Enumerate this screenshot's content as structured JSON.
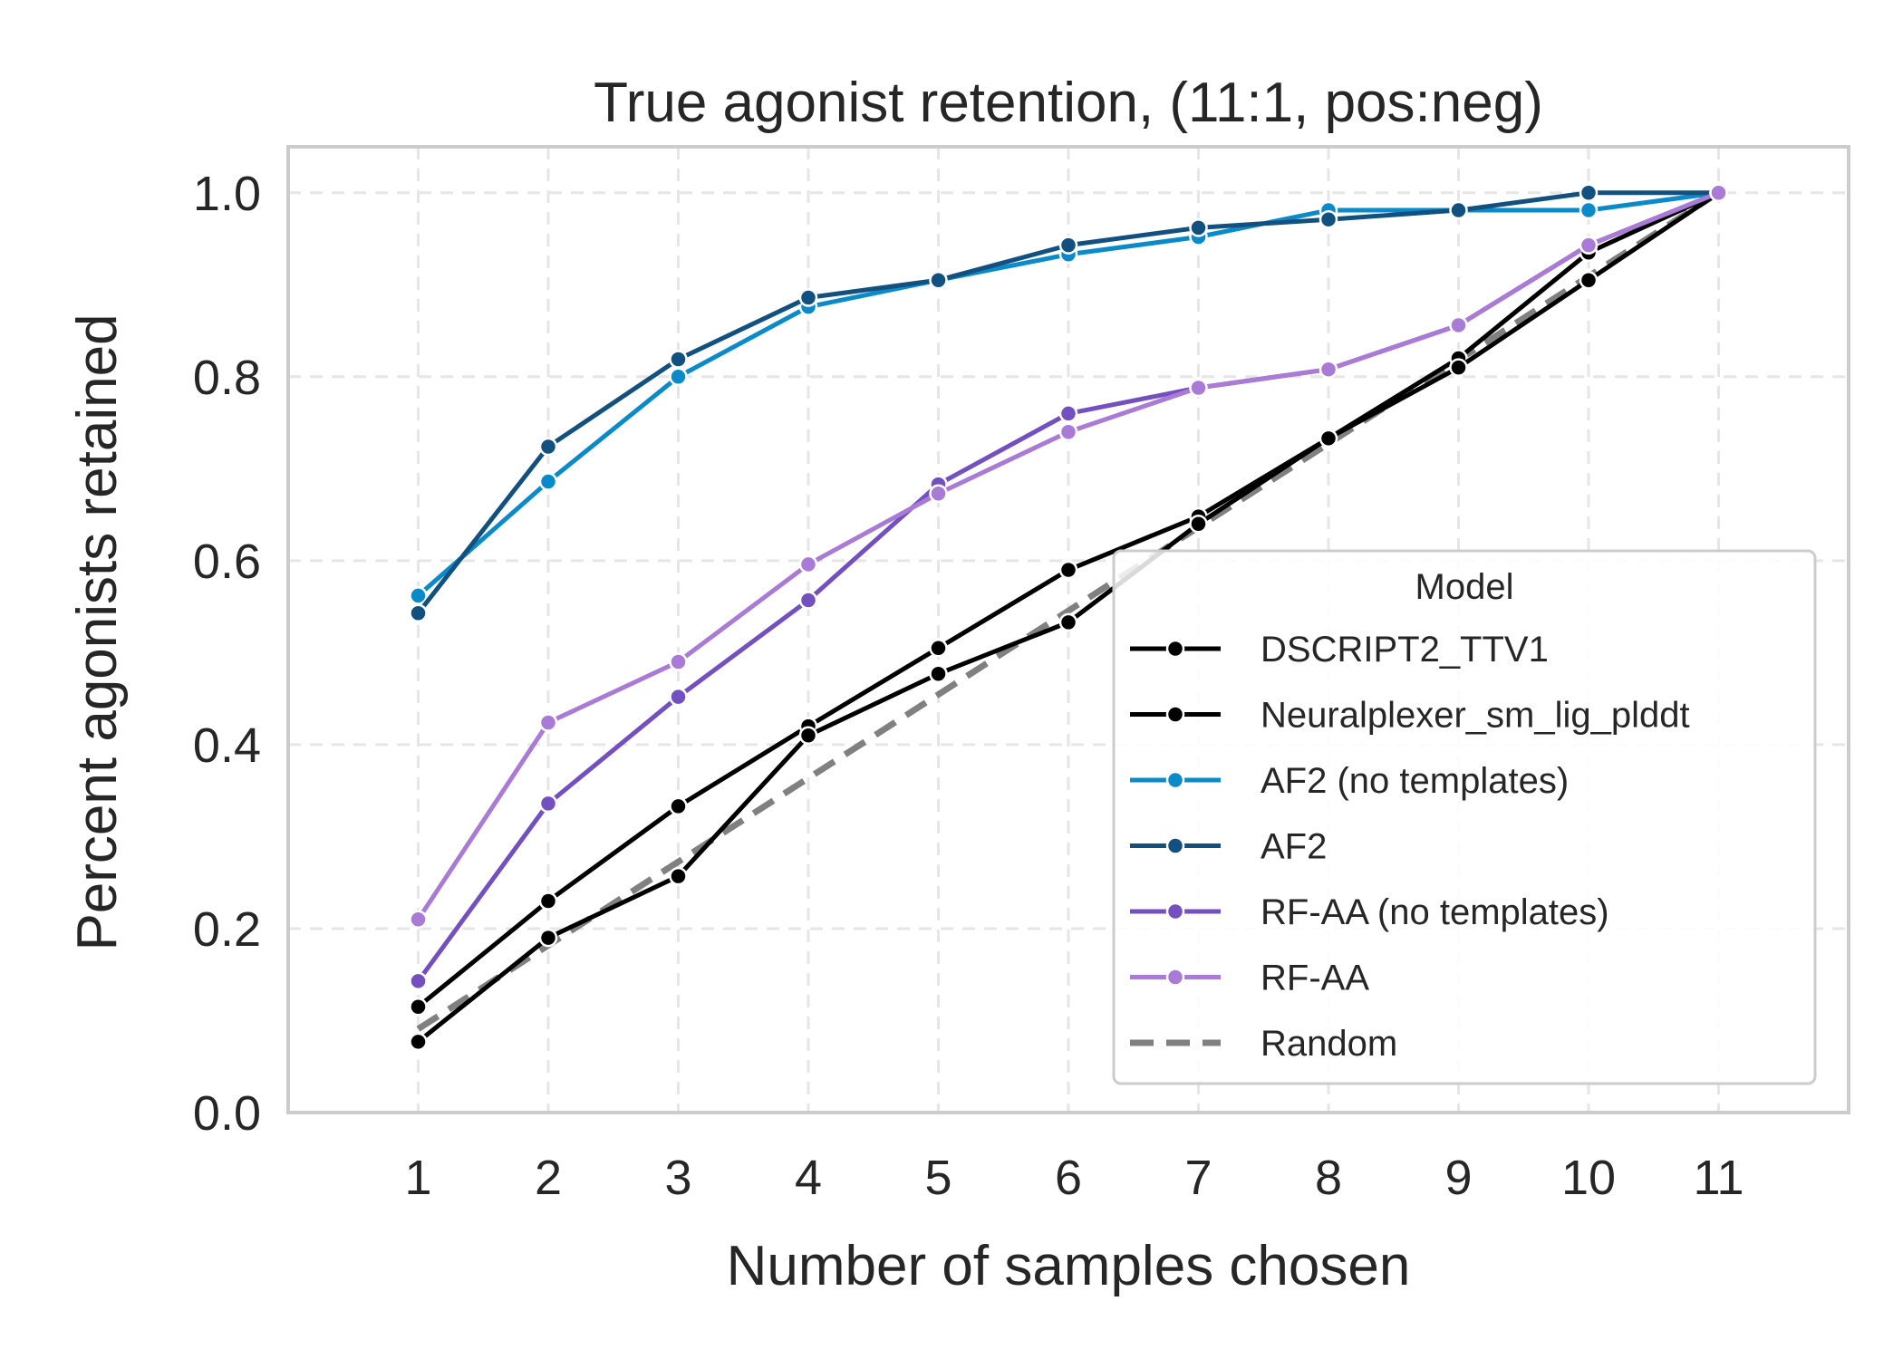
{
  "chart_data": {
    "type": "line",
    "title": "True agonist retention, (11:1, pos:neg)",
    "xlabel": "Number of samples chosen",
    "ylabel": "Percent agonists retained",
    "x": [
      1,
      2,
      3,
      4,
      5,
      6,
      7,
      8,
      9,
      10,
      11
    ],
    "xlim": [
      0,
      12
    ],
    "ylim": [
      0.0,
      1.05
    ],
    "yticks": [
      "0.0",
      "0.2",
      "0.4",
      "0.6",
      "0.8",
      "1.0"
    ],
    "xticks": [
      "1",
      "2",
      "3",
      "4",
      "5",
      "6",
      "7",
      "8",
      "9",
      "10",
      "11"
    ],
    "grid": true,
    "legend": {
      "title": "Model",
      "placement": "lower-right"
    },
    "series": [
      {
        "name": "DSCRIPT2_TTV1",
        "color": "#000000",
        "style": "solid-marker",
        "values": [
          0.115,
          0.23,
          0.333,
          0.42,
          0.505,
          0.59,
          0.648,
          0.733,
          0.82,
          0.935,
          1.0
        ]
      },
      {
        "name": "Neuralplexer_sm_lig_plddt",
        "color": "#000000",
        "style": "solid-marker",
        "values": [
          0.077,
          0.19,
          0.257,
          0.41,
          0.477,
          0.533,
          0.64,
          0.733,
          0.81,
          0.905,
          1.0
        ]
      },
      {
        "name": "AF2 (no templates)",
        "color": "#0a8ac9",
        "style": "solid-marker",
        "values": [
          0.562,
          0.686,
          0.8,
          0.876,
          0.905,
          0.933,
          0.952,
          0.981,
          0.981,
          0.981,
          1.0
        ]
      },
      {
        "name": "AF2",
        "color": "#12507f",
        "style": "solid-marker",
        "values": [
          0.543,
          0.724,
          0.819,
          0.886,
          0.905,
          0.943,
          0.962,
          0.971,
          0.981,
          1.0,
          1.0
        ]
      },
      {
        "name": "RF-AA (no templates)",
        "color": "#7250c0",
        "style": "solid-marker",
        "values": [
          0.143,
          0.336,
          0.452,
          0.557,
          0.683,
          0.76,
          0.788,
          0.808,
          0.856,
          0.943,
          1.0
        ]
      },
      {
        "name": "RF-AA",
        "color": "#a97ad6",
        "style": "solid-marker",
        "values": [
          0.21,
          0.424,
          0.49,
          0.596,
          0.673,
          0.74,
          0.788,
          0.808,
          0.856,
          0.943,
          1.0
        ]
      },
      {
        "name": "Random",
        "color": "#808080",
        "style": "dashed",
        "values": [
          0.0909,
          0.1818,
          0.2727,
          0.3636,
          0.4545,
          0.5455,
          0.6364,
          0.7273,
          0.8182,
          0.9091,
          1.0
        ]
      }
    ]
  }
}
